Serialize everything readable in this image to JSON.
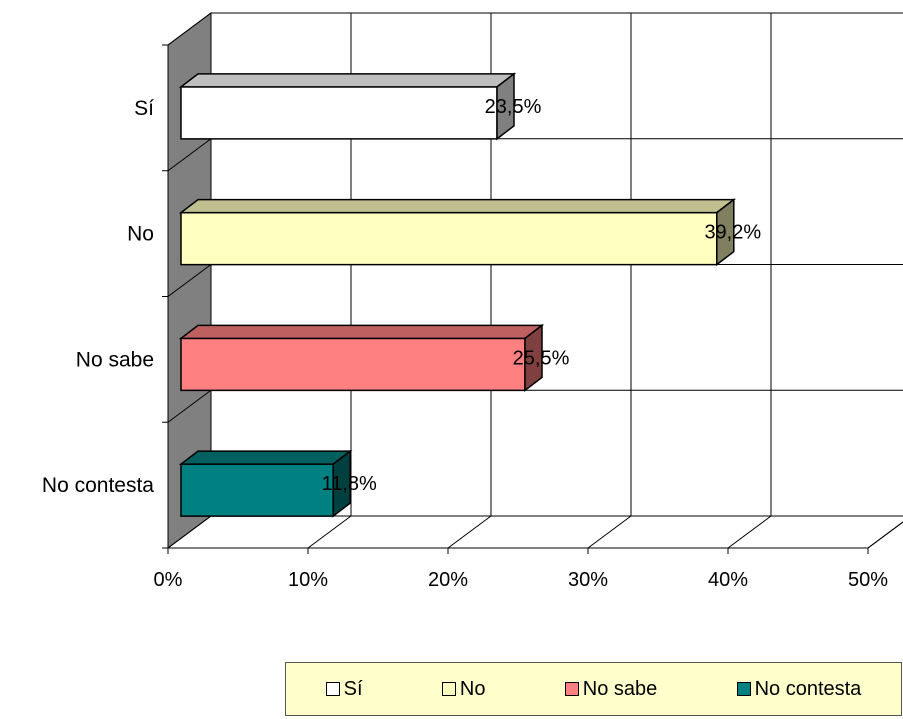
{
  "chart_data": {
    "type": "bar",
    "orientation": "horizontal",
    "three_d": true,
    "categories": [
      "Sí",
      "No",
      "No sabe",
      "No contesta"
    ],
    "values": [
      23.5,
      39.2,
      25.5,
      11.8
    ],
    "data_labels": [
      "23,5%",
      "39,2%",
      "25,5%",
      "11,8%"
    ],
    "colors": [
      "#ffffff",
      "#ffffc0",
      "#ff8080",
      "#008080"
    ],
    "xlim": [
      0,
      50
    ],
    "x_ticks": [
      0,
      10,
      20,
      30,
      40,
      50
    ],
    "x_tick_labels": [
      "0%",
      "10%",
      "20%",
      "30%",
      "40%",
      "50%"
    ],
    "grid": true,
    "legend_position": "bottom-right",
    "legend": [
      "Sí",
      "No",
      "No sabe",
      "No contesta"
    ]
  }
}
